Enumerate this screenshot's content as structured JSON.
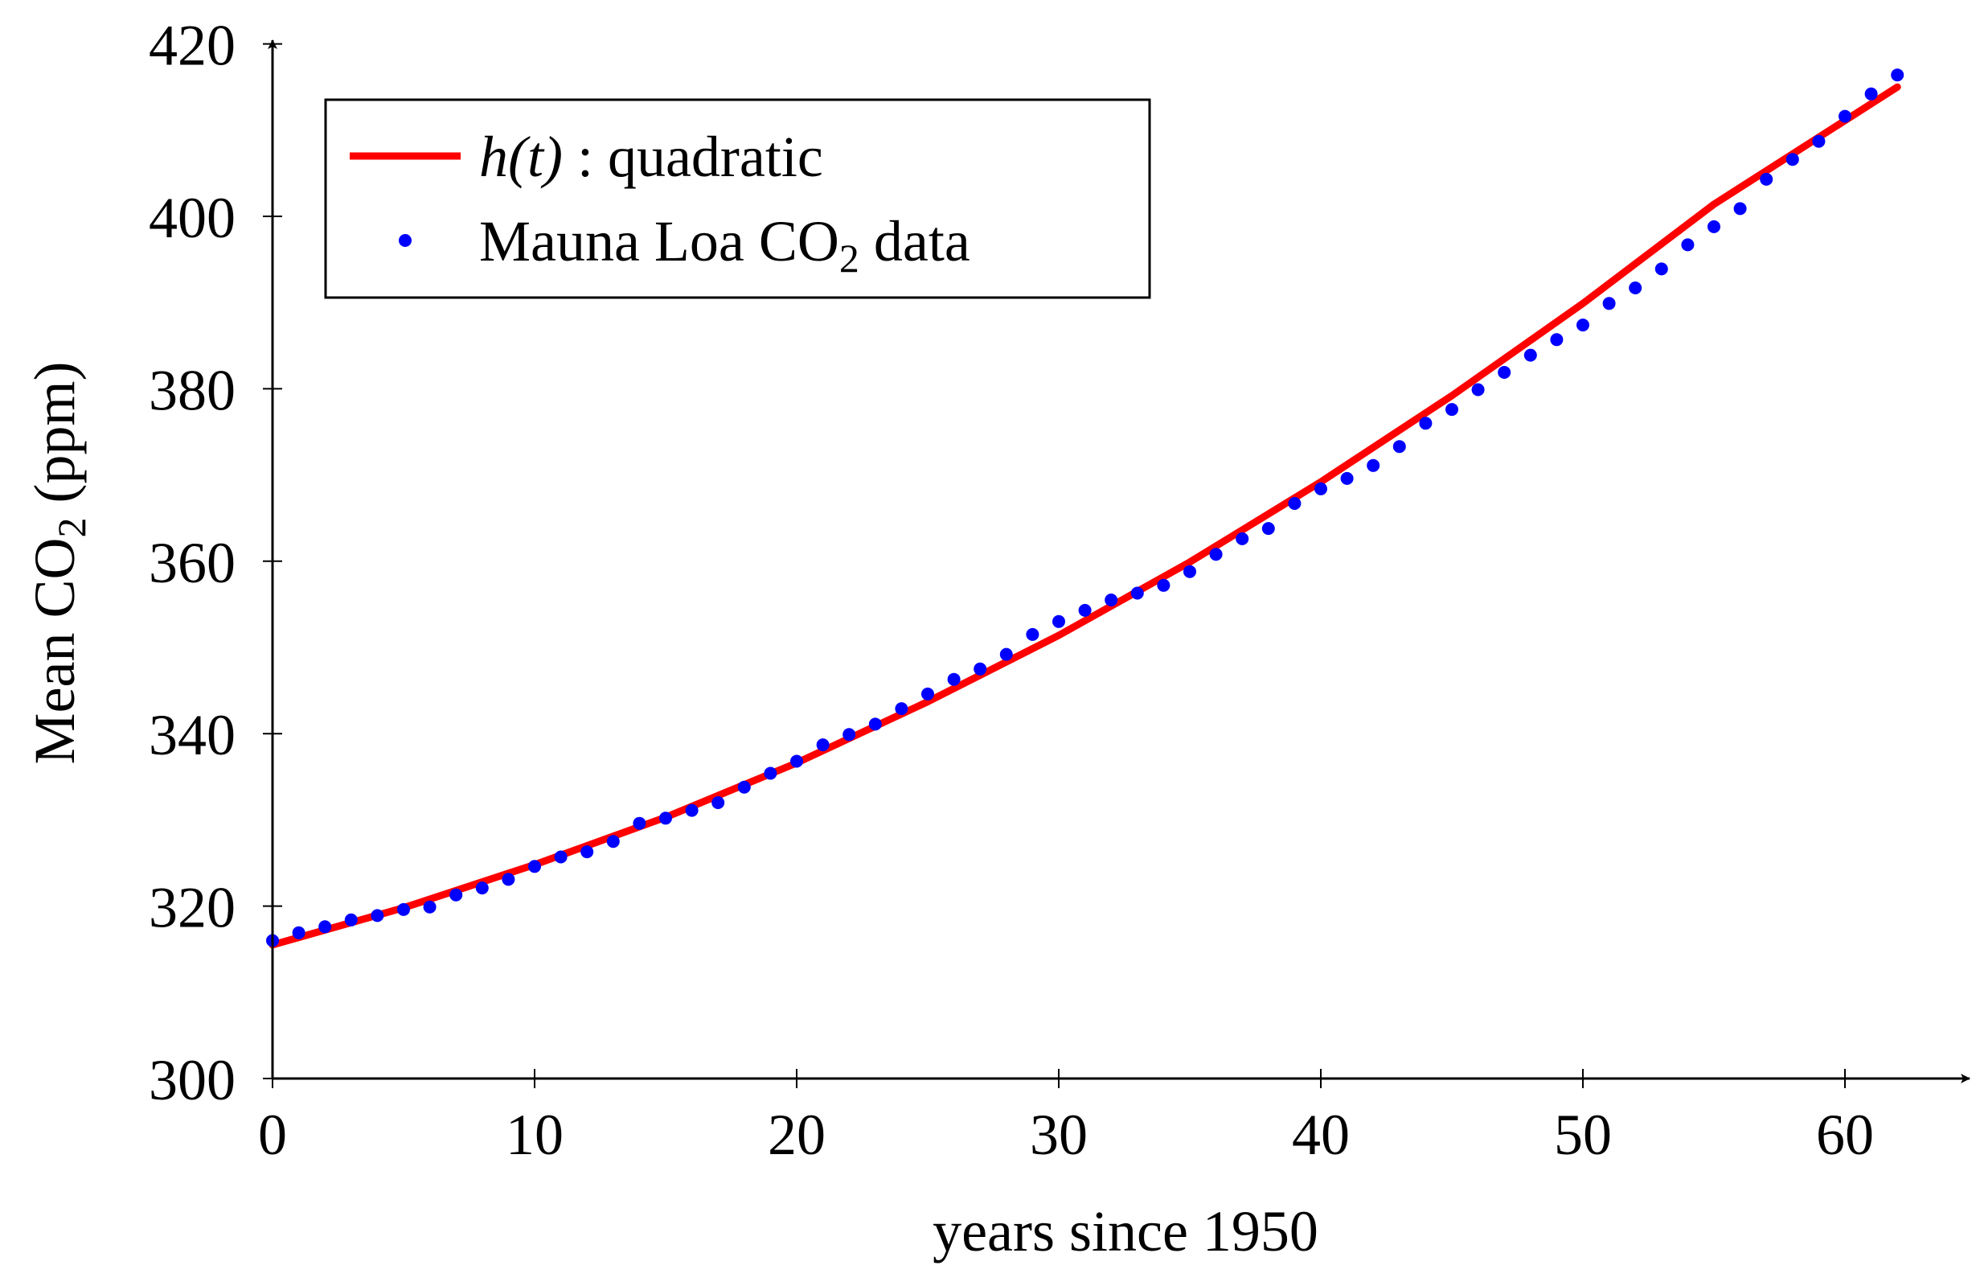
{
  "chart_data": {
    "type": "scatter",
    "title": "",
    "xlabel": "years since 1950",
    "ylabel_parts": {
      "prefix": "Mean CO",
      "subscript": "2",
      "suffix": " (ppm)"
    },
    "xlim": [
      0,
      65
    ],
    "ylim": [
      300,
      420
    ],
    "xticks": [
      0,
      10,
      20,
      30,
      40,
      50,
      60
    ],
    "yticks": [
      300,
      320,
      340,
      360,
      380,
      400,
      420
    ],
    "legend_position": "top-left",
    "legend": {
      "fit": {
        "math": "h(t)",
        "label": " : quadratic"
      },
      "data": {
        "prefix": "Mauna Loa CO",
        "subscript": "2",
        "suffix": " data"
      }
    },
    "colors": {
      "fit": "#ff0000",
      "data": "#0000ff",
      "axis": "#000000"
    },
    "fit_curve": {
      "name": "h(t) : quadratic",
      "x": [
        0,
        5,
        10,
        15,
        20,
        25,
        30,
        35,
        40,
        45,
        50,
        55,
        62
      ],
      "y": [
        315.5,
        319.8,
        324.8,
        330.3,
        336.6,
        343.7,
        351.4,
        359.9,
        369.2,
        379.2,
        389.9,
        401.4,
        415.0
      ]
    },
    "series": [
      {
        "name": "Mauna Loa CO2 data",
        "x": [
          0,
          1,
          2,
          3,
          4,
          5,
          6,
          7,
          8,
          9,
          10,
          11,
          12,
          13,
          14,
          15,
          16,
          17,
          18,
          19,
          20,
          21,
          22,
          23,
          24,
          25,
          26,
          27,
          28,
          29,
          30,
          31,
          32,
          33,
          34,
          35,
          36,
          37,
          38,
          39,
          40,
          41,
          42,
          43,
          44,
          45,
          46,
          47,
          48,
          49,
          50,
          51,
          52,
          53,
          54,
          55,
          56,
          57,
          58,
          59,
          60,
          61,
          62
        ],
        "y": [
          316.0,
          316.9,
          317.6,
          318.4,
          318.9,
          319.6,
          319.9,
          321.3,
          322.1,
          323.1,
          324.6,
          325.7,
          326.3,
          327.5,
          329.6,
          330.2,
          331.1,
          332.0,
          333.8,
          335.4,
          336.8,
          338.7,
          339.9,
          341.1,
          342.9,
          344.6,
          346.3,
          347.5,
          349.2,
          351.5,
          353.0,
          354.3,
          355.5,
          356.3,
          357.2,
          358.8,
          360.8,
          362.6,
          363.8,
          366.7,
          368.4,
          369.6,
          371.1,
          373.3,
          376.0,
          377.6,
          379.9,
          381.9,
          383.9,
          385.7,
          387.4,
          389.9,
          391.7,
          393.9,
          396.7,
          398.8,
          400.9,
          404.3,
          406.6,
          408.7,
          411.6,
          414.2,
          416.4
        ]
      }
    ]
  }
}
